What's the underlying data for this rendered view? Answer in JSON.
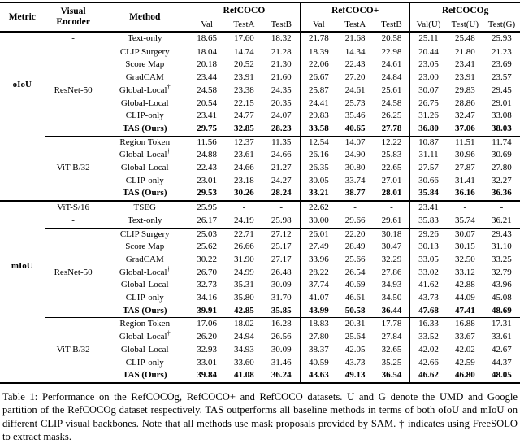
{
  "caption": "Table 1: Performance on the RefCOCOg, RefCOCO+ and RefCOCO datasets. U and G denote the UMD and Google partition of the RefCOCOg dataset respectively. TAS outperforms all baseline methods in terms of both oIoU and mIoU on different CLIP visual backbones. Note that all methods use mask proposals provided by SAM. † indicates using FreeSOLO to extract masks.",
  "table": {
    "headers": {
      "metric": "Metric",
      "encoder": "Visual Encoder",
      "method": "Method",
      "groups": [
        {
          "label": "RefCOCO",
          "cols": [
            "Val",
            "TestA",
            "TestB"
          ]
        },
        {
          "label": "RefCOCO+",
          "cols": [
            "Val",
            "TestA",
            "TestB"
          ]
        },
        {
          "label": "RefCOCOg",
          "cols": [
            "Val(U)",
            "Test(U)",
            "Test(G)"
          ]
        }
      ]
    },
    "sections": [
      {
        "metric": "",
        "thick_rule_after": false,
        "blocks": [
          {
            "encoder": "-",
            "rule_after": true,
            "rows": [
              {
                "method": "Text-only",
                "values": [
                  "18.65",
                  "17.60",
                  "18.32",
                  "21.78",
                  "21.68",
                  "20.58",
                  "25.11",
                  "25.48",
                  "25.93"
                ]
              }
            ]
          }
        ]
      },
      {
        "metric": "oIoU",
        "thick_rule_after": true,
        "blocks": [
          {
            "encoder": "ResNet-50",
            "rule_after": true,
            "rows": [
              {
                "method": "CLIP Surgery",
                "values": [
                  "18.04",
                  "14.74",
                  "21.28",
                  "18.39",
                  "14.34",
                  "22.98",
                  "20.44",
                  "21.80",
                  "21.23"
                ]
              },
              {
                "method": "Score Map",
                "values": [
                  "20.18",
                  "20.52",
                  "21.30",
                  "22.06",
                  "22.43",
                  "24.61",
                  "23.05",
                  "23.41",
                  "23.69"
                ]
              },
              {
                "method": "GradCAM",
                "values": [
                  "23.44",
                  "23.91",
                  "21.60",
                  "26.67",
                  "27.20",
                  "24.84",
                  "23.00",
                  "23.91",
                  "23.57"
                ]
              },
              {
                "method": "Global-Local",
                "sup": "†",
                "values": [
                  "24.58",
                  "23.38",
                  "24.35",
                  "25.87",
                  "24.61",
                  "25.61",
                  "30.07",
                  "29.83",
                  "29.45"
                ]
              },
              {
                "method": "Global-Local",
                "values": [
                  "20.54",
                  "22.15",
                  "20.35",
                  "24.41",
                  "25.73",
                  "24.58",
                  "26.75",
                  "28.86",
                  "29.01"
                ]
              },
              {
                "method": "CLIP-only",
                "values": [
                  "23.41",
                  "24.77",
                  "24.07",
                  "29.83",
                  "35.46",
                  "26.25",
                  "31.26",
                  "32.47",
                  "33.08"
                ]
              },
              {
                "method": "TAS (Ours)",
                "bold": true,
                "values": [
                  "29.75",
                  "32.85",
                  "28.23",
                  "33.58",
                  "40.65",
                  "27.78",
                  "36.80",
                  "37.06",
                  "38.03"
                ]
              }
            ]
          },
          {
            "encoder": "ViT-B/32",
            "rule_after": false,
            "rows": [
              {
                "method": "Region Token",
                "values": [
                  "11.56",
                  "12.37",
                  "11.35",
                  "12.54",
                  "14.07",
                  "12.22",
                  "10.87",
                  "11.51",
                  "11.74"
                ]
              },
              {
                "method": "Global-Local",
                "sup": "†",
                "values": [
                  "24.88",
                  "23.61",
                  "24.66",
                  "26.16",
                  "24.90",
                  "25.83",
                  "31.11",
                  "30.96",
                  "30.69"
                ]
              },
              {
                "method": "Global-Local",
                "values": [
                  "22.43",
                  "24.66",
                  "21.27",
                  "26.35",
                  "30.80",
                  "22.65",
                  "27.57",
                  "27.87",
                  "27.80"
                ]
              },
              {
                "method": "CLIP-only",
                "values": [
                  "23.01",
                  "23.18",
                  "24.27",
                  "30.05",
                  "33.74",
                  "27.01",
                  "30.66",
                  "31.41",
                  "32.27"
                ]
              },
              {
                "method": "TAS (Ours)",
                "bold": true,
                "values": [
                  "29.53",
                  "30.26",
                  "28.24",
                  "33.21",
                  "38.77",
                  "28.01",
                  "35.84",
                  "36.16",
                  "36.36"
                ]
              }
            ]
          }
        ]
      },
      {
        "metric": "mIoU",
        "thick_rule_after": false,
        "blocks": [
          {
            "encoder": "ViT-S/16",
            "rule_after": false,
            "rows": [
              {
                "method": "TSEG",
                "values": [
                  "25.95",
                  "-",
                  "-",
                  "22.62",
                  "-",
                  "-",
                  "23.41",
                  "-",
                  "-"
                ]
              }
            ]
          },
          {
            "encoder": "-",
            "rule_after": true,
            "rows": [
              {
                "method": "Text-only",
                "values": [
                  "26.17",
                  "24.19",
                  "25.98",
                  "30.00",
                  "29.66",
                  "29.61",
                  "35.83",
                  "35.74",
                  "36.21"
                ]
              }
            ]
          },
          {
            "encoder": "ResNet-50",
            "rule_after": true,
            "rows": [
              {
                "method": "CLIP Surgery",
                "values": [
                  "25.03",
                  "22.71",
                  "27.12",
                  "26.01",
                  "22.20",
                  "30.18",
                  "29.26",
                  "30.07",
                  "29.43"
                ]
              },
              {
                "method": "Score Map",
                "values": [
                  "25.62",
                  "26.66",
                  "25.17",
                  "27.49",
                  "28.49",
                  "30.47",
                  "30.13",
                  "30.15",
                  "31.10"
                ]
              },
              {
                "method": "GradCAM",
                "values": [
                  "30.22",
                  "31.90",
                  "27.17",
                  "33.96",
                  "25.66",
                  "32.29",
                  "33.05",
                  "32.50",
                  "33.25"
                ]
              },
              {
                "method": "Global-Local",
                "sup": "†",
                "values": [
                  "26.70",
                  "24.99",
                  "26.48",
                  "28.22",
                  "26.54",
                  "27.86",
                  "33.02",
                  "33.12",
                  "32.79"
                ]
              },
              {
                "method": "Global-Local",
                "values": [
                  "32.73",
                  "35.31",
                  "30.09",
                  "37.74",
                  "40.69",
                  "34.93",
                  "41.62",
                  "42.88",
                  "43.96"
                ]
              },
              {
                "method": "CLIP-only",
                "values": [
                  "34.16",
                  "35.80",
                  "31.70",
                  "41.07",
                  "46.61",
                  "34.50",
                  "43.73",
                  "44.09",
                  "45.08"
                ]
              },
              {
                "method": "TAS (Ours)",
                "bold": true,
                "values": [
                  "39.91",
                  "42.85",
                  "35.85",
                  "43.99",
                  "50.58",
                  "36.44",
                  "47.68",
                  "47.41",
                  "48.69"
                ]
              }
            ]
          },
          {
            "encoder": "ViT-B/32",
            "rule_after": false,
            "rows": [
              {
                "method": "Region Token",
                "values": [
                  "17.06",
                  "18.02",
                  "16.28",
                  "18.83",
                  "20.31",
                  "17.78",
                  "16.33",
                  "16.88",
                  "17.31"
                ]
              },
              {
                "method": "Global-Local",
                "sup": "†",
                "values": [
                  "26.20",
                  "24.94",
                  "26.56",
                  "27.80",
                  "25.64",
                  "27.84",
                  "33.52",
                  "33.67",
                  "33.61"
                ]
              },
              {
                "method": "Global-Local",
                "values": [
                  "32.93",
                  "34.93",
                  "30.09",
                  "38.37",
                  "42.05",
                  "32.65",
                  "42.02",
                  "42.02",
                  "42.67"
                ]
              },
              {
                "method": "CLIP-only",
                "values": [
                  "33.01",
                  "33.60",
                  "31.46",
                  "40.59",
                  "43.73",
                  "35.25",
                  "42.66",
                  "42.59",
                  "44.37"
                ]
              },
              {
                "method": "TAS (Ours)",
                "bold": true,
                "values": [
                  "39.84",
                  "41.08",
                  "36.24",
                  "43.63",
                  "49.13",
                  "36.54",
                  "46.62",
                  "46.80",
                  "48.05"
                ]
              }
            ]
          }
        ]
      }
    ]
  }
}
